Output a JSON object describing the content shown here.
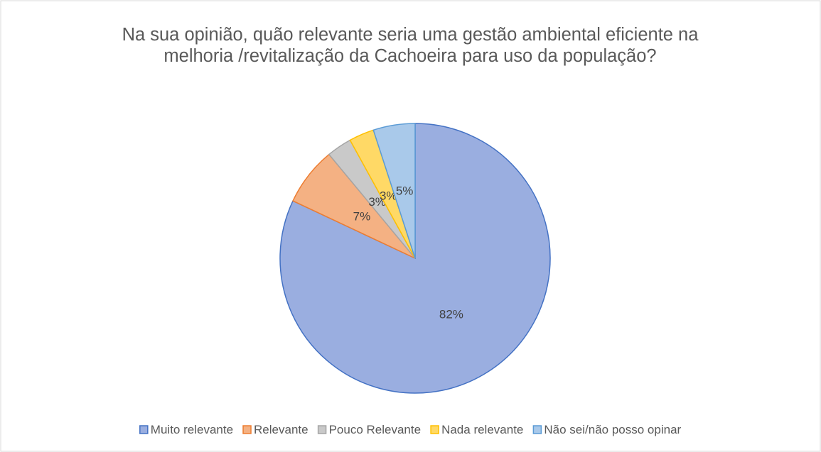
{
  "chart_data": {
    "type": "pie",
    "title": "Na sua opinião, quão relevante seria uma gestão ambiental eficiente na melhoria /revitalização da Cachoeira para uso da população?",
    "categories": [
      "Muito relevante",
      "Relevante",
      "Pouco Relevante",
      "Nada relevante",
      "Não sei/não posso opinar"
    ],
    "values": [
      82,
      7,
      3,
      3,
      5
    ],
    "value_labels": [
      "82%",
      "7%",
      "3%",
      "3%",
      "5%"
    ],
    "colors": [
      "#9aaee0",
      "#f4b183",
      "#c9c9c9",
      "#ffd966",
      "#a9c9ea"
    ],
    "edge_colors": [
      "#4472c4",
      "#ed7d31",
      "#a5a5a5",
      "#ffc000",
      "#5b9bd5"
    ],
    "legend": "bottom"
  }
}
